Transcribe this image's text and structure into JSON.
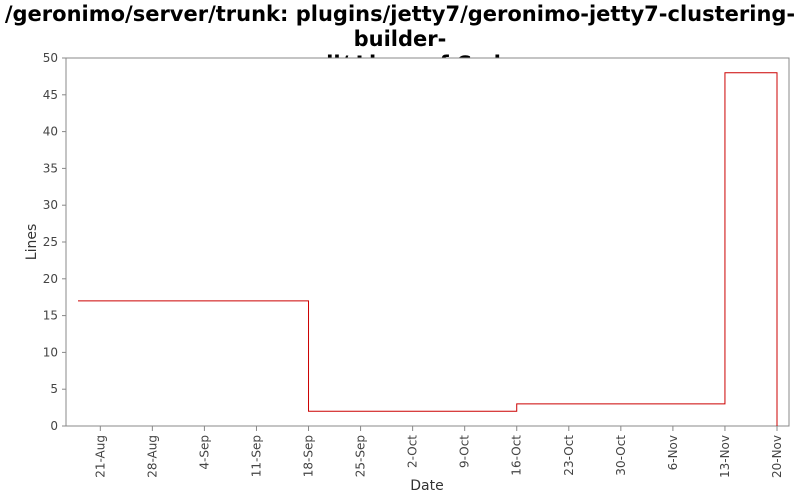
{
  "chart_data": {
    "type": "line",
    "title_line1": "/geronimo/server/trunk: plugins/jetty7/geronimo-jetty7-clustering-builder-",
    "title_line2": "wadi/ Lines of Code",
    "xlabel": "Date",
    "ylabel": "Lines",
    "step": true,
    "grid": false,
    "legend": "none",
    "ylim": [
      0,
      50
    ],
    "y_ticks": [
      0,
      5,
      10,
      15,
      20,
      25,
      30,
      35,
      40,
      45,
      50
    ],
    "x_ticks": [
      "21-Aug",
      "28-Aug",
      "4-Sep",
      "11-Sep",
      "18-Sep",
      "25-Sep",
      "2-Oct",
      "9-Oct",
      "16-Oct",
      "23-Oct",
      "30-Oct",
      "6-Nov",
      "13-Nov",
      "20-Nov"
    ],
    "x_range": [
      "2008-08-18",
      "2008-11-20"
    ],
    "series": [
      {
        "color": "#cc0000",
        "points": [
          {
            "x": "2008-08-18",
            "y": 17
          },
          {
            "x": "2008-09-18",
            "y": 2
          },
          {
            "x": "2008-10-16",
            "y": 3
          },
          {
            "x": "2008-11-13",
            "y": 48
          },
          {
            "x": "2008-11-20",
            "y": 0
          }
        ]
      }
    ]
  }
}
